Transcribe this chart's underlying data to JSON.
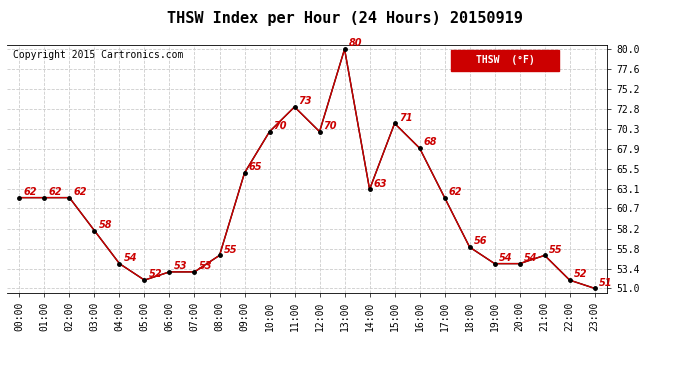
{
  "title": "THSW Index per Hour (24 Hours) 20150919",
  "copyright": "Copyright 2015 Cartronics.com",
  "legend_label": "THSW  (°F)",
  "hours": [
    0,
    1,
    2,
    3,
    4,
    5,
    6,
    7,
    8,
    9,
    10,
    11,
    12,
    13,
    14,
    15,
    16,
    17,
    18,
    19,
    20,
    21,
    22,
    23
  ],
  "values": [
    62,
    62,
    62,
    58,
    54,
    52,
    53,
    53,
    55,
    65,
    70,
    73,
    70,
    80,
    63,
    71,
    68,
    62,
    56,
    54,
    54,
    55,
    52,
    51
  ],
  "x_labels": [
    "00:00",
    "01:00",
    "02:00",
    "03:00",
    "04:00",
    "05:00",
    "06:00",
    "07:00",
    "08:00",
    "09:00",
    "10:00",
    "11:00",
    "12:00",
    "13:00",
    "14:00",
    "15:00",
    "16:00",
    "17:00",
    "18:00",
    "19:00",
    "20:00",
    "21:00",
    "22:00",
    "23:00"
  ],
  "y_ticks": [
    51.0,
    53.4,
    55.8,
    58.2,
    60.7,
    63.1,
    65.5,
    67.9,
    70.3,
    72.8,
    75.2,
    77.6,
    80.0
  ],
  "ylim_min": 50.5,
  "ylim_max": 80.5,
  "line_color": "#cc0000",
  "marker_color": "#000000",
  "bg_color": "#ffffff",
  "grid_color": "#cccccc",
  "title_fontsize": 11,
  "copyright_fontsize": 7,
  "label_fontsize": 7,
  "annotation_fontsize": 7,
  "legend_fontsize": 7
}
